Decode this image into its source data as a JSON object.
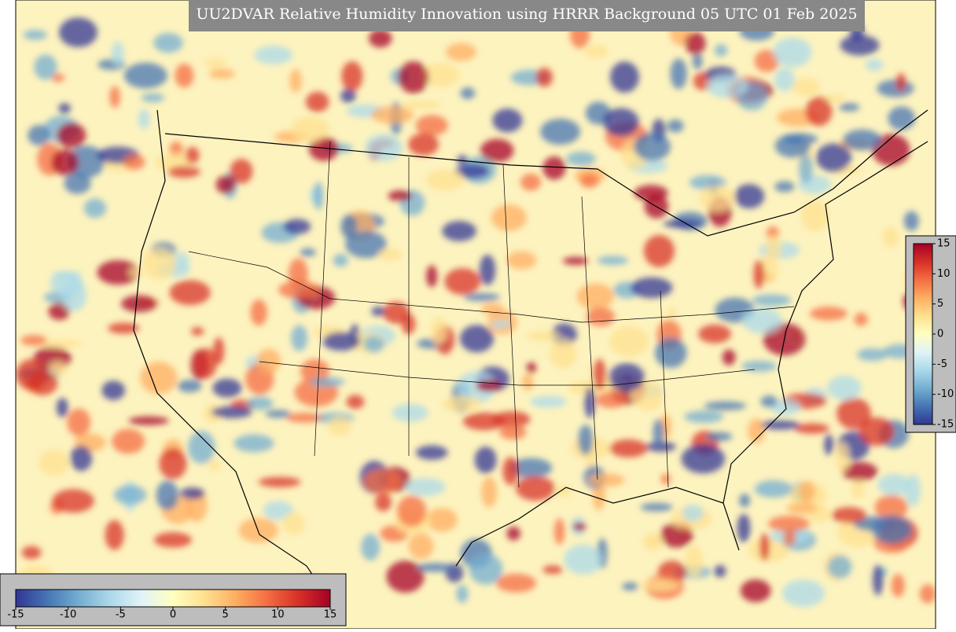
{
  "title": "UU2DVAR Relative Humidity Innovation using HRRR Background 05 UTC 01 Feb 2025",
  "colorbar_vertical": {
    "lim": [
      -15,
      15
    ],
    "ticks": [
      15,
      10,
      5,
      0,
      -5,
      -10,
      -15
    ]
  },
  "colorbar_horizontal": {
    "lim": [
      -15,
      15
    ],
    "ticks": [
      -15,
      -10,
      -5,
      0,
      5,
      10,
      15
    ]
  }
}
